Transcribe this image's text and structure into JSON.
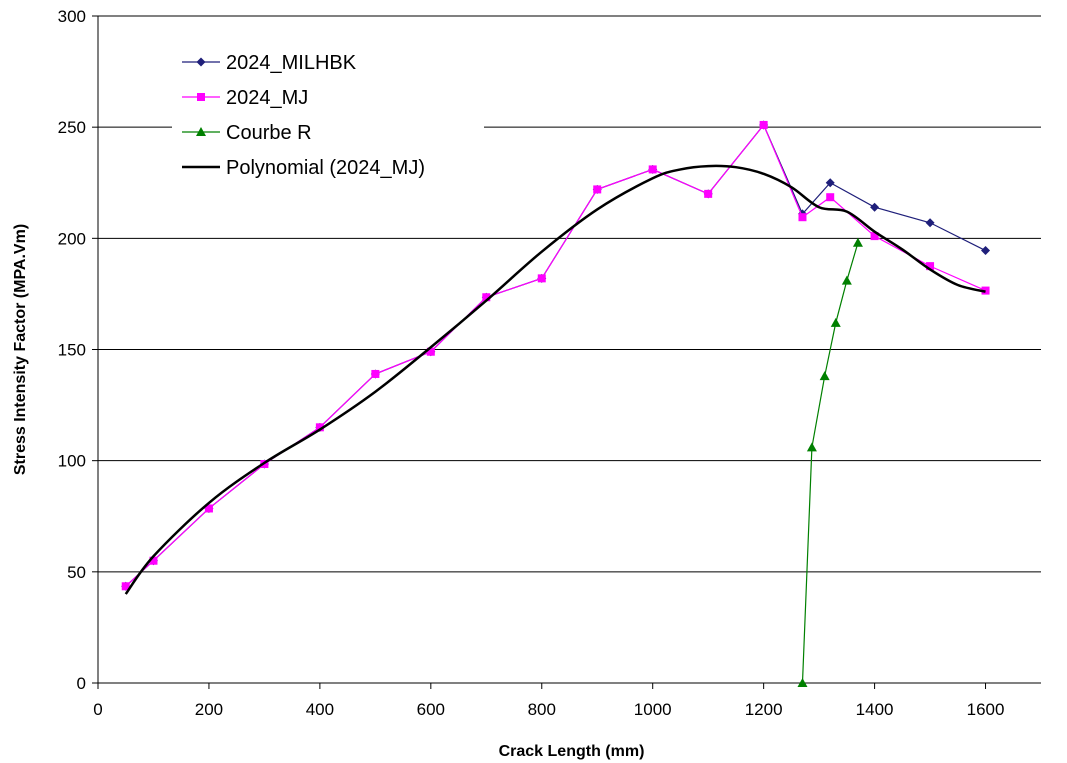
{
  "chart_data": {
    "type": "line",
    "xlabel": "Crack Length (mm)",
    "ylabel": "Stress Intensity Factor (MPA.Vm)",
    "xlim": [
      0,
      1700
    ],
    "ylim": [
      0,
      300
    ],
    "x_ticks": [
      0,
      200,
      400,
      600,
      800,
      1000,
      1200,
      1400,
      1600
    ],
    "y_ticks": [
      0,
      50,
      100,
      150,
      200,
      250,
      300
    ],
    "grid": "horizontal",
    "legend_position": "top-left",
    "series": [
      {
        "name": "2024_MILHBK",
        "color": "#1f1f7a",
        "marker": "diamond",
        "x": [
          50,
          100,
          200,
          300,
          400,
          500,
          600,
          700,
          800,
          900,
          1000,
          1100,
          1200,
          1270,
          1320,
          1400,
          1500,
          1600
        ],
        "y": [
          43.5,
          55,
          78.5,
          98.5,
          115,
          139,
          149,
          173.5,
          182,
          222,
          231,
          220,
          251,
          211,
          225,
          214,
          207,
          194.5
        ]
      },
      {
        "name": "2024_MJ",
        "color": "#ff00ff",
        "marker": "square",
        "x": [
          50,
          100,
          200,
          300,
          400,
          500,
          600,
          700,
          800,
          900,
          1000,
          1100,
          1200,
          1270,
          1320,
          1400,
          1500,
          1600
        ],
        "y": [
          43.5,
          55,
          78.5,
          98.5,
          115,
          139,
          149,
          173.5,
          182,
          222,
          231,
          220,
          251,
          209.5,
          218.5,
          201,
          187.5,
          176.5
        ]
      },
      {
        "name": "Courbe R",
        "color": "#008000",
        "marker": "triangle",
        "x": [
          1270,
          1287,
          1310,
          1330,
          1350,
          1370
        ],
        "y": [
          0,
          106,
          138,
          162,
          181,
          198
        ]
      },
      {
        "name": "Polynomial (2024_MJ)",
        "color": "#000000",
        "marker": "none",
        "smooth": true,
        "x": [
          50,
          100,
          200,
          300,
          400,
          500,
          600,
          700,
          800,
          900,
          1000,
          1050,
          1100,
          1150,
          1200,
          1250,
          1300,
          1350,
          1400,
          1450,
          1500,
          1550,
          1600
        ],
        "y": [
          40,
          57,
          81,
          99,
          114,
          131,
          151,
          172,
          194,
          213,
          227,
          231,
          232.5,
          232,
          229,
          223,
          214,
          212,
          203,
          195,
          186,
          179,
          176
        ]
      }
    ]
  }
}
